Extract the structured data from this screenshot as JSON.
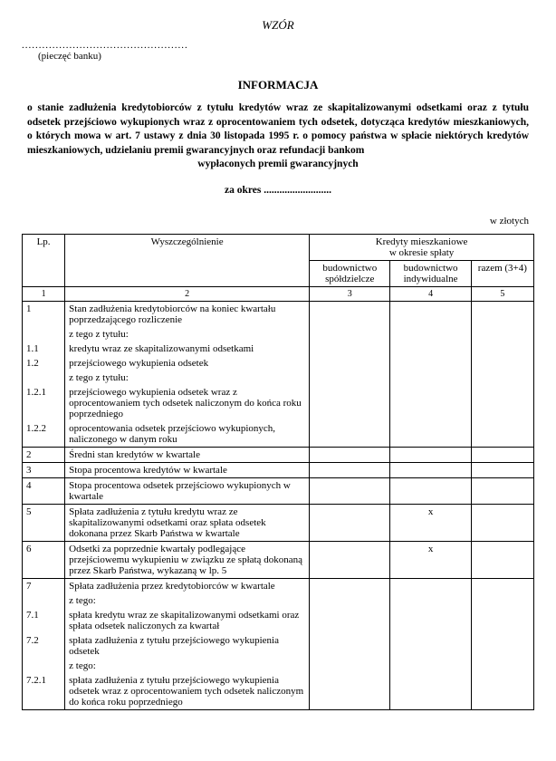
{
  "header": {
    "wzor": "WZÓR",
    "stamp_dots": ".................................................",
    "stamp_label": "(pieczęć banku)",
    "title": "INFORMACJA",
    "subtitle_line1": "o stanie zadłużenia kredytobiorców z tytułu kredytów wraz ze skapitalizowanymi odsetkami oraz z tytułu odsetek przejściowo wykupionych wraz z oprocentowaniem tych odsetek, dotycząca kredytów mieszkaniowych, o których mowa w art. 7 ustawy z dnia 30 listopada 1995 r. o pomocy państwa w spłacie niektórych kredytów mieszkaniowych, udzielaniu premii gwarancyjnych oraz refundacji bankom",
    "subtitle_line2": "wypłaconych premii gwarancyjnych",
    "period_label": "za okres ..........................",
    "currency": "w złotych"
  },
  "table": {
    "head": {
      "lp": "Lp.",
      "wysz": "Wyszczególnienie",
      "group": "Kredyty mieszkaniowe\nw okresie spłaty",
      "c3": "budownictwo spółdzielcze",
      "c4": "budownictwo indywidualne",
      "c5": "razem (3+4)"
    },
    "colnums": {
      "c1": "1",
      "c2": "2",
      "c3": "3",
      "c4": "4",
      "c5": "5"
    },
    "groups": [
      {
        "rows": [
          {
            "lp": "1",
            "desc": "Stan zadłużenia kredytobiorców na koniec kwartału poprzedzającego rozliczenie",
            "v3": "",
            "v4": "",
            "v5": ""
          },
          {
            "lp": "",
            "desc": "z tego z tytułu:",
            "v3": "",
            "v4": "",
            "v5": ""
          },
          {
            "lp": "1.1",
            "desc": "kredytu wraz ze skapitalizowanymi odsetkami",
            "v3": "",
            "v4": "",
            "v5": ""
          },
          {
            "lp": "1.2",
            "desc": "przejściowego wykupienia odsetek",
            "v3": "",
            "v4": "",
            "v5": ""
          },
          {
            "lp": "",
            "desc": "z tego z tytułu:",
            "v3": "",
            "v4": "",
            "v5": ""
          },
          {
            "lp": "1.2.1",
            "desc": "przejściowego wykupienia odsetek wraz z oprocentowaniem tych odsetek naliczonym do końca roku poprzedniego",
            "v3": "",
            "v4": "",
            "v5": ""
          },
          {
            "lp": "1.2.2",
            "desc": "oprocentowania odsetek przejściowo wykupionych, naliczonego w danym roku",
            "v3": "",
            "v4": "",
            "v5": ""
          }
        ]
      },
      {
        "rows": [
          {
            "lp": "2",
            "desc": "Średni stan kredytów w kwartale",
            "v3": "",
            "v4": "",
            "v5": ""
          }
        ]
      },
      {
        "rows": [
          {
            "lp": "3",
            "desc": "Stopa procentowa kredytów w kwartale",
            "v3": "",
            "v4": "",
            "v5": ""
          }
        ]
      },
      {
        "rows": [
          {
            "lp": "4",
            "desc": "Stopa procentowa odsetek przejściowo wykupionych w kwartale",
            "v3": "",
            "v4": "",
            "v5": ""
          }
        ]
      },
      {
        "rows": [
          {
            "lp": "5",
            "desc": "Spłata zadłużenia z tytułu kredytu wraz ze skapitalizowanymi odsetkami oraz spłata odsetek dokonana przez Skarb Państwa w kwartale",
            "v3": "",
            "v4": "x",
            "v5": ""
          }
        ]
      },
      {
        "rows": [
          {
            "lp": "6",
            "desc": "Odsetki za poprzednie kwartały podlegające przejściowemu wykupieniu w związku ze spłatą dokonaną przez Skarb Państwa, wykazaną w lp. 5",
            "v3": "",
            "v4": "x",
            "v5": ""
          }
        ]
      },
      {
        "rows": [
          {
            "lp": "7",
            "desc": "Spłata zadłużenia przez kredytobiorców w kwartale",
            "v3": "",
            "v4": "",
            "v5": ""
          },
          {
            "lp": "",
            "desc": "z tego:",
            "v3": "",
            "v4": "",
            "v5": ""
          },
          {
            "lp": "7.1",
            "desc": "spłata kredytu wraz ze skapitalizowanymi odsetkami oraz spłata odsetek naliczonych za kwartał",
            "v3": "",
            "v4": "",
            "v5": ""
          },
          {
            "lp": "7.2",
            "desc": "spłata zadłużenia z tytułu przejściowego wykupienia odsetek",
            "v3": "",
            "v4": "",
            "v5": ""
          },
          {
            "lp": "",
            "desc": "z tego:",
            "v3": "",
            "v4": "",
            "v5": ""
          },
          {
            "lp": "7.2.1",
            "desc": "spłata zadłużenia z tytułu przejściowego wykupienia odsetek wraz z oprocentowaniem tych odsetek naliczonym do końca roku poprzedniego",
            "v3": "",
            "v4": "",
            "v5": ""
          }
        ]
      }
    ]
  }
}
